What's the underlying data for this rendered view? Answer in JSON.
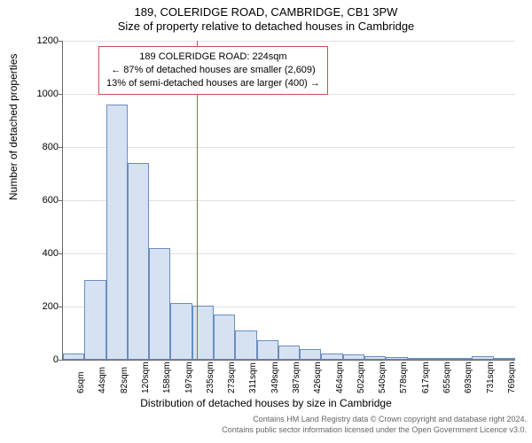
{
  "title_line1": "189, COLERIDGE ROAD, CAMBRIDGE, CB1 3PW",
  "title_line2": "Size of property relative to detached houses in Cambridge",
  "chart": {
    "type": "bar",
    "ylim": [
      0,
      1200
    ],
    "ytick_step": 200,
    "ylabel": "Number of detached properties",
    "xlabel": "Distribution of detached houses by size in Cambridge",
    "categories": [
      "6sqm",
      "44sqm",
      "82sqm",
      "120sqm",
      "158sqm",
      "197sqm",
      "235sqm",
      "273sqm",
      "311sqm",
      "349sqm",
      "387sqm",
      "426sqm",
      "464sqm",
      "502sqm",
      "540sqm",
      "578sqm",
      "617sqm",
      "655sqm",
      "693sqm",
      "731sqm",
      "769sqm"
    ],
    "values": [
      25,
      300,
      960,
      740,
      420,
      215,
      205,
      170,
      110,
      75,
      55,
      40,
      25,
      20,
      12,
      10,
      8,
      6,
      5,
      12,
      4
    ],
    "bar_fill": "#d6e2f2",
    "bar_stroke": "#6b8dbf",
    "bar_width_ratio": 1.0,
    "background_color": "#ffffff",
    "grid_color": "#e0e0e0",
    "axis_color": "#666666",
    "label_fontsize": 12,
    "tick_fontsize": 11,
    "title_fontsize": 13,
    "marker": {
      "x_sqm": 224,
      "line_color": "#c94f4f",
      "box_lines": [
        "189 COLERIDGE ROAD: 224sqm",
        "← 87% of detached houses are smaller (2,609)",
        "13% of semi-detached houses are larger (400) →"
      ]
    }
  },
  "footer_line1": "Contains HM Land Registry data © Crown copyright and database right 2024.",
  "footer_line2": "Contains public sector information licensed under the Open Government Licence v3.0."
}
